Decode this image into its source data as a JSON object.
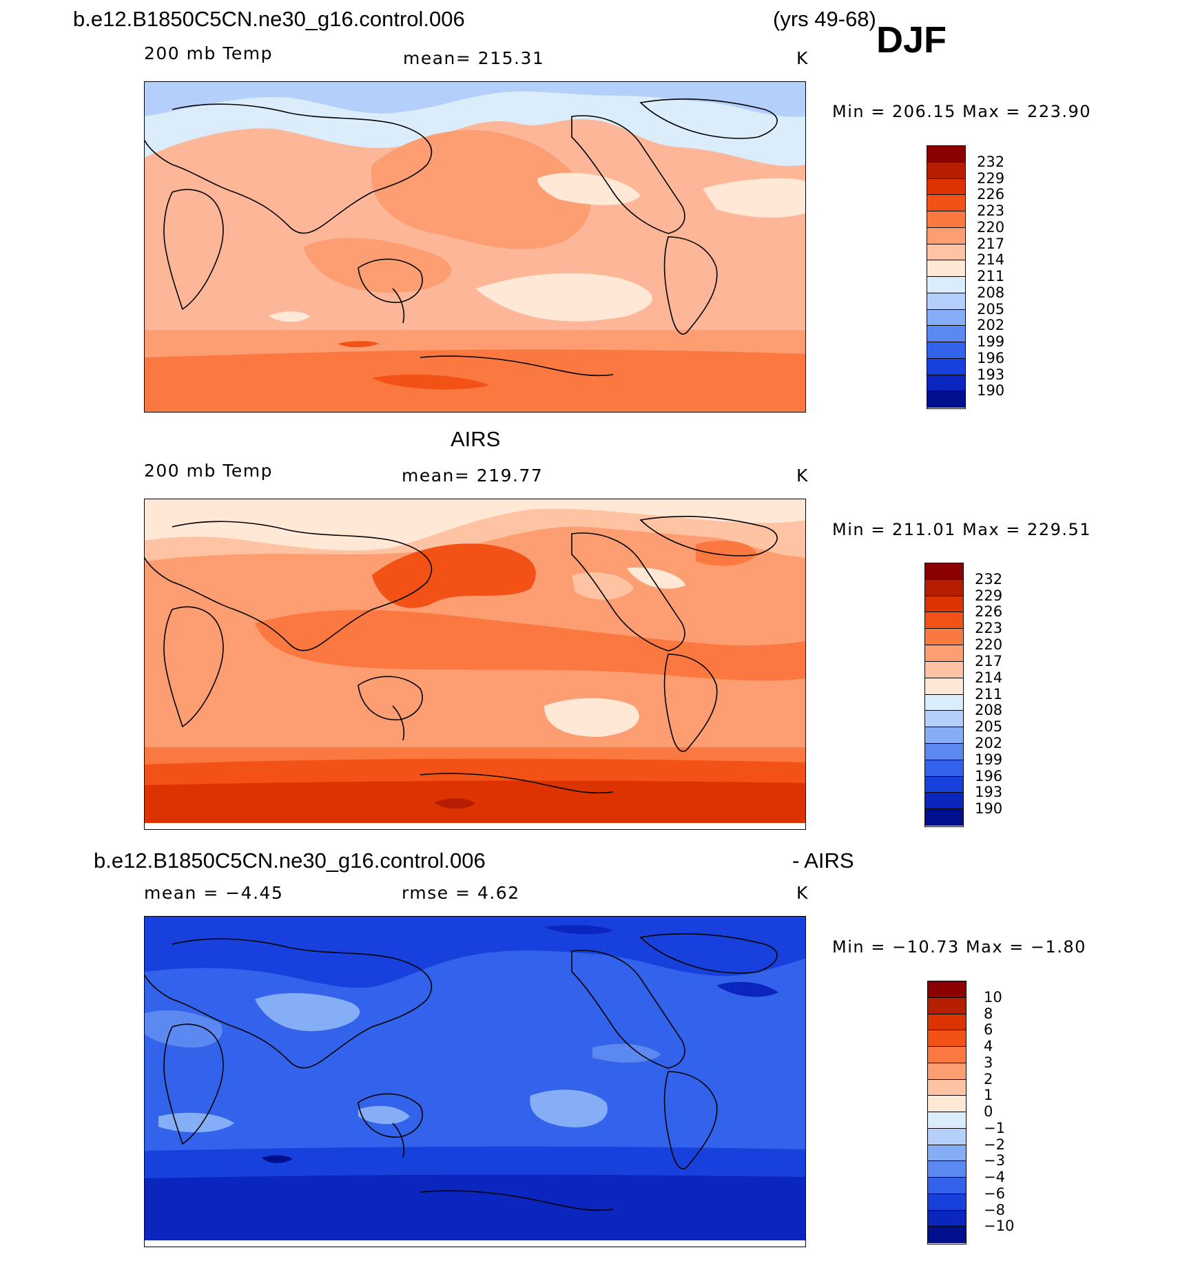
{
  "header": {
    "case_name": "b.e12.B1850C5CN.ne30_g16.control.006",
    "years": "(yrs 49-68)",
    "season": "DJF"
  },
  "panels": [
    {
      "field": "200 mb Temp",
      "stat_text": "mean=  215.31",
      "units": "K",
      "minmax": "Min  =  206.15  Max  =  223.90",
      "colorbar": {
        "labels": [
          "232",
          "229",
          "226",
          "223",
          "220",
          "217",
          "214",
          "211",
          "208",
          "205",
          "202",
          "199",
          "196",
          "193",
          "190"
        ],
        "colors": [
          "#8b0000",
          "#b51e00",
          "#dd3300",
          "#f35216",
          "#fb7840",
          "#fc9d72",
          "#fec3a3",
          "#ffe8d6",
          "#dbecfb",
          "#b4d0fa",
          "#86aef6",
          "#5b89f1",
          "#3263ea",
          "#1740dc",
          "#0a26be",
          "#00108c"
        ]
      }
    },
    {
      "title": "AIRS",
      "field": "200 mb Temp",
      "stat_text": "mean=  219.77",
      "units": "K",
      "minmax": "Min  =  211.01  Max  =  229.51",
      "colorbar": {
        "labels": [
          "232",
          "229",
          "226",
          "223",
          "220",
          "217",
          "214",
          "211",
          "208",
          "205",
          "202",
          "199",
          "196",
          "193",
          "190"
        ],
        "colors": [
          "#8b0000",
          "#b51e00",
          "#dd3300",
          "#f35216",
          "#fb7840",
          "#fc9d72",
          "#fec3a3",
          "#ffe8d6",
          "#dbecfb",
          "#b4d0fa",
          "#86aef6",
          "#5b89f1",
          "#3263ea",
          "#1740dc",
          "#0a26be",
          "#00108c"
        ]
      }
    },
    {
      "title_left": "b.e12.B1850C5CN.ne30_g16.control.006",
      "title_right": "- AIRS",
      "mean_text": "mean  =    −4.45",
      "rmse_text": "rmse  =      4.62",
      "units": "K",
      "minmax": "Min  =  −10.73  Max  =    −1.80",
      "colorbar": {
        "labels": [
          "10",
          "8",
          "6",
          "4",
          "3",
          "2",
          "1",
          "0",
          "−1",
          "−2",
          "−3",
          "−4",
          "−6",
          "−8",
          "−10"
        ],
        "colors": [
          "#8b0000",
          "#b51e00",
          "#dd3300",
          "#f35216",
          "#fb7840",
          "#fc9d72",
          "#fec3a3",
          "#ffe8d6",
          "#dbecfb",
          "#b4d0fa",
          "#86aef6",
          "#5b89f1",
          "#3263ea",
          "#1740dc",
          "#0a26be",
          "#00108c"
        ]
      }
    }
  ]
}
